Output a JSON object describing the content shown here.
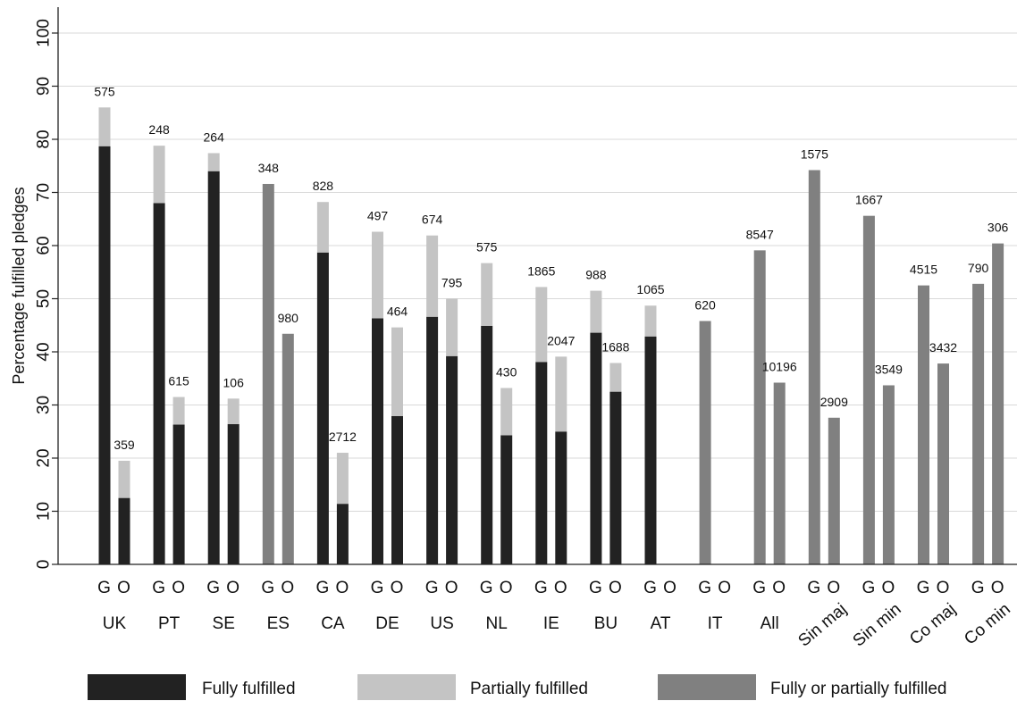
{
  "chart_data": {
    "type": "bar",
    "ylabel": "Percentage fulfilled pledges",
    "ylim": [
      0,
      100
    ],
    "yticks": [
      0,
      10,
      20,
      30,
      40,
      50,
      60,
      70,
      80,
      90,
      100
    ],
    "grid": true,
    "legend_position": "bottom",
    "series": [
      {
        "name": "Fully fulfilled",
        "color": "#222222"
      },
      {
        "name": "Partially fulfilled",
        "color": "#c4c4c4"
      },
      {
        "name": "Fully or partially fulfilled",
        "color": "#808080"
      }
    ],
    "groups": [
      {
        "label": "UK",
        "bars": [
          {
            "label": "G",
            "fully": 78.7,
            "partial": 7.3,
            "n": "575"
          },
          {
            "label": "O",
            "fully": 12.5,
            "partial": 7.0,
            "n": "359"
          }
        ]
      },
      {
        "label": "PT",
        "bars": [
          {
            "label": "G",
            "fully": 68.0,
            "partial": 10.8,
            "n": "248"
          },
          {
            "label": "O",
            "fully": 26.3,
            "partial": 5.2,
            "n": "615"
          }
        ]
      },
      {
        "label": "SE",
        "bars": [
          {
            "label": "G",
            "fully": 74.0,
            "partial": 3.4,
            "n": "264"
          },
          {
            "label": "O",
            "fully": 26.4,
            "partial": 4.8,
            "n": "106"
          }
        ]
      },
      {
        "label": "ES",
        "bars": [
          {
            "label": "G",
            "combined": 71.6,
            "n": "348"
          },
          {
            "label": "O",
            "combined": 43.4,
            "n": "980"
          }
        ]
      },
      {
        "label": "CA",
        "bars": [
          {
            "label": "G",
            "fully": 58.7,
            "partial": 9.5,
            "n": "828"
          },
          {
            "label": "O",
            "fully": 11.4,
            "partial": 9.6,
            "n": "2712"
          }
        ]
      },
      {
        "label": "DE",
        "bars": [
          {
            "label": "G",
            "fully": 46.3,
            "partial": 16.3,
            "n": "497"
          },
          {
            "label": "O",
            "fully": 27.9,
            "partial": 16.7,
            "n": "464"
          }
        ]
      },
      {
        "label": "US",
        "bars": [
          {
            "label": "G",
            "fully": 46.6,
            "partial": 15.3,
            "n": "674"
          },
          {
            "label": "O",
            "fully": 39.2,
            "partial": 10.8,
            "n": "795"
          }
        ]
      },
      {
        "label": "NL",
        "bars": [
          {
            "label": "G",
            "fully": 44.9,
            "partial": 11.8,
            "n": "575"
          },
          {
            "label": "O",
            "fully": 24.3,
            "partial": 8.9,
            "n": "430"
          }
        ]
      },
      {
        "label": "IE",
        "bars": [
          {
            "label": "G",
            "fully": 38.1,
            "partial": 14.1,
            "n": "1865"
          },
          {
            "label": "O",
            "fully": 25.0,
            "partial": 14.1,
            "n": "2047"
          }
        ]
      },
      {
        "label": "BU",
        "bars": [
          {
            "label": "G",
            "fully": 43.6,
            "partial": 7.9,
            "n": "988"
          },
          {
            "label": "O",
            "fully": 32.5,
            "partial": 5.4,
            "n": "1688"
          }
        ]
      },
      {
        "label": "AT",
        "bars": [
          {
            "label": "G",
            "fully": 42.9,
            "partial": 5.8,
            "n": "1065"
          },
          {
            "label": "O",
            "n": ""
          }
        ]
      },
      {
        "label": "IT",
        "bars": [
          {
            "label": "G",
            "combined": 45.8,
            "n": "620"
          },
          {
            "label": "O",
            "n": ""
          }
        ]
      },
      {
        "label": "All",
        "bars": [
          {
            "label": "G",
            "combined": 59.1,
            "n": "8547"
          },
          {
            "label": "O",
            "combined": 34.2,
            "n": "10196"
          }
        ]
      },
      {
        "label": "Sin maj",
        "rotated": true,
        "bars": [
          {
            "label": "G",
            "combined": 74.2,
            "n": "1575"
          },
          {
            "label": "O",
            "combined": 27.6,
            "n": "2909"
          }
        ]
      },
      {
        "label": "Sin min",
        "rotated": true,
        "bars": [
          {
            "label": "G",
            "combined": 65.6,
            "n": "1667"
          },
          {
            "label": "O",
            "combined": 33.7,
            "n": "3549"
          }
        ]
      },
      {
        "label": "Co maj",
        "rotated": true,
        "bars": [
          {
            "label": "G",
            "combined": 52.5,
            "n": "4515"
          },
          {
            "label": "O",
            "combined": 37.8,
            "n": "3432"
          }
        ]
      },
      {
        "label": "Co min",
        "rotated": true,
        "bars": [
          {
            "label": "G",
            "combined": 52.8,
            "n": "790"
          },
          {
            "label": "O",
            "combined": 60.4,
            "n": "306"
          }
        ]
      }
    ]
  }
}
